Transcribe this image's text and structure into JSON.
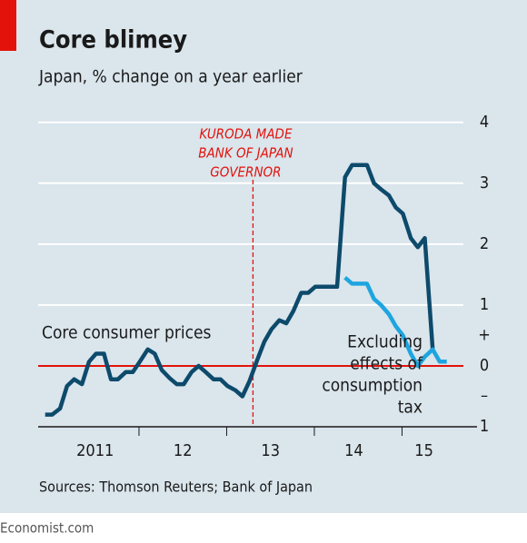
{
  "chart_data": {
    "type": "line",
    "title": "Core blimey",
    "subtitle": "Japan, % change on a year earlier",
    "source": "Sources: Thomson Reuters; Bank of Japan",
    "footer": "Economist.com",
    "annotation": {
      "x": 2013.3,
      "lines": [
        "KURODA MADE",
        "BANK OF JAPAN",
        "GOVERNOR"
      ],
      "color": "#e3120b"
    },
    "x": [
      2010.93,
      2011.01,
      2011.1,
      2011.18,
      2011.26,
      2011.35,
      2011.43,
      2011.51,
      2011.6,
      2011.68,
      2011.76,
      2011.85,
      2011.93,
      2012.01,
      2012.1,
      2012.18,
      2012.26,
      2012.35,
      2012.43,
      2012.51,
      2012.6,
      2012.68,
      2012.76,
      2012.85,
      2012.93,
      2013.01,
      2013.1,
      2013.18,
      2013.26,
      2013.35,
      2013.43,
      2013.51,
      2013.6,
      2013.68,
      2013.76,
      2013.85,
      2013.93,
      2014.01,
      2014.1,
      2014.18,
      2014.26,
      2014.35,
      2014.43,
      2014.51,
      2014.6,
      2014.68,
      2014.76,
      2014.85,
      2014.93,
      2015.01,
      2015.1,
      2015.18,
      2015.26,
      2015.35,
      2015.43,
      2015.51
    ],
    "series": [
      {
        "name": "Core consumer prices",
        "color": "#0d4a6b",
        "values": [
          -0.8,
          -0.8,
          -0.7,
          -0.33,
          -0.22,
          -0.3,
          0.07,
          0.2,
          0.2,
          -0.22,
          -0.22,
          -0.1,
          -0.1,
          0.07,
          0.27,
          0.2,
          -0.07,
          -0.2,
          -0.3,
          -0.3,
          -0.1,
          0,
          -0.1,
          -0.22,
          -0.22,
          -0.33,
          -0.4,
          -0.5,
          -0.25,
          0.1,
          0.4,
          0.6,
          0.75,
          0.7,
          0.9,
          1.2,
          1.2,
          1.3,
          1.3,
          1.3,
          1.3,
          3.1,
          3.3,
          3.3,
          3.3,
          3.0,
          2.9,
          2.8,
          2.6,
          2.5,
          2.1,
          1.95,
          2.1,
          0.27,
          null,
          null
        ]
      },
      {
        "name": "Excluding effects of consumption tax",
        "label_lines": [
          "Excluding",
          "effects of",
          "consumption",
          "tax"
        ],
        "color": "#1ea5df",
        "values": [
          null,
          null,
          null,
          null,
          null,
          null,
          null,
          null,
          null,
          null,
          null,
          null,
          null,
          null,
          null,
          null,
          null,
          null,
          null,
          null,
          null,
          null,
          null,
          null,
          null,
          null,
          null,
          null,
          null,
          null,
          null,
          null,
          null,
          null,
          null,
          null,
          null,
          null,
          null,
          null,
          null,
          1.45,
          1.35,
          1.35,
          1.35,
          1.1,
          1.0,
          0.85,
          0.65,
          0.5,
          0.2,
          0.0,
          0.15,
          0.27,
          0.07,
          0.07
        ]
      }
    ],
    "xlim": [
      2010.85,
      2015.7
    ],
    "xticks": [
      {
        "value": 2011.5,
        "label": "2011"
      },
      {
        "value": 2012.5,
        "label": "12"
      },
      {
        "value": 2013.5,
        "label": "13"
      },
      {
        "value": 2014.45,
        "label": "14"
      },
      {
        "value": 2015.25,
        "label": "15"
      }
    ],
    "year_edges": [
      2012,
      2013,
      2014,
      2015
    ],
    "ylim": [
      -1,
      4.25
    ],
    "yticks": [
      4,
      3,
      2,
      1,
      0,
      {
        "value": -1,
        "label": "1"
      }
    ],
    "sign_labels": [
      {
        "value": 0.5,
        "label": "+"
      },
      {
        "value": -0.5,
        "label": "–"
      }
    ],
    "grid": true,
    "zero_line_color": "#e3120b"
  }
}
